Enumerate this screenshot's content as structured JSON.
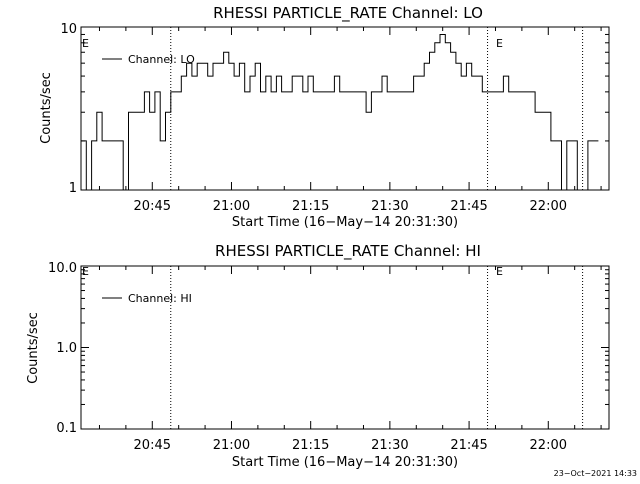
{
  "chart_data": [
    {
      "type": "line",
      "title": "RHESSI PARTICLE_RATE Channel: LO",
      "xlabel": "Start Time (16−May−14 20:31:30)",
      "ylabel": "Counts/sec",
      "yscale": "log",
      "ylim": [
        1,
        10
      ],
      "ytick_labels": [
        "1",
        "10"
      ],
      "xlim": [
        "20:31:30",
        "22:11:30"
      ],
      "xtick_labels": [
        "20:45",
        "21:00",
        "21:15",
        "21:30",
        "21:45",
        "22:00"
      ],
      "legend": "Channel: LO",
      "legend_position": "top-left",
      "markers": [
        {
          "label": "E",
          "time": "20:31:30"
        },
        {
          "label": "",
          "time": "20:48:30"
        },
        {
          "label": "E",
          "time": "21:48:30"
        },
        {
          "label": "",
          "time": "22:06:30"
        }
      ],
      "series": [
        {
          "name": "Channel: LO",
          "x_minutes_from_start": [
            0,
            1,
            2,
            3,
            4,
            5,
            6,
            7,
            8,
            9,
            10,
            11,
            12,
            13,
            14,
            15,
            16,
            17,
            18,
            19,
            20,
            21,
            22,
            23,
            24,
            25,
            26,
            27,
            28,
            29,
            30,
            31,
            32,
            33,
            34,
            35,
            36,
            37,
            38,
            39,
            40,
            41,
            42,
            43,
            44,
            45,
            46,
            47,
            48,
            49,
            50,
            51,
            52,
            53,
            54,
            55,
            56,
            57,
            58,
            59,
            60,
            61,
            62,
            63,
            64,
            65,
            66,
            67,
            68,
            69,
            70,
            71,
            72,
            73,
            74,
            75,
            76,
            77,
            78,
            79,
            80,
            81,
            82,
            83,
            84,
            85,
            86,
            87,
            88,
            89,
            90,
            91,
            92,
            93,
            94,
            95,
            96,
            97
          ],
          "values": [
            2,
            1,
            2,
            3,
            2,
            2,
            2,
            2,
            1,
            3,
            3,
            3,
            4,
            3,
            4,
            2,
            3,
            4,
            4,
            5,
            6,
            5,
            6,
            6,
            5,
            6,
            6,
            7,
            6,
            5,
            6,
            4,
            5,
            6,
            4,
            5,
            4,
            5,
            4,
            4,
            5,
            5,
            4,
            5,
            4,
            4,
            4,
            4,
            5,
            4,
            4,
            4,
            4,
            4,
            3,
            4,
            4,
            5,
            4,
            4,
            4,
            4,
            4,
            5,
            5,
            6,
            7,
            8,
            9,
            8,
            7,
            6,
            5,
            6,
            5,
            5,
            4,
            4,
            4,
            4,
            5,
            4,
            4,
            4,
            4,
            4,
            3,
            3,
            3,
            2,
            2,
            1,
            2,
            2,
            1,
            1,
            2,
            2
          ]
        }
      ]
    },
    {
      "type": "line",
      "title": "RHESSI PARTICLE_RATE Channel: HI",
      "xlabel": "Start Time (16−May−14 20:31:30)",
      "ylabel": "Counts/sec",
      "yscale": "log",
      "ylim": [
        0.1,
        10
      ],
      "ytick_labels": [
        "0.1",
        "1.0",
        "10.0"
      ],
      "xlim": [
        "20:31:30",
        "22:11:30"
      ],
      "xtick_labels": [
        "20:45",
        "21:00",
        "21:15",
        "21:30",
        "21:45",
        "22:00"
      ],
      "legend": "Channel: HI",
      "legend_position": "top-left",
      "markers": [
        {
          "label": "E",
          "time": "20:31:30"
        },
        {
          "label": "",
          "time": "20:48:30"
        },
        {
          "label": "E",
          "time": "21:48:30"
        },
        {
          "label": "",
          "time": "22:06:30"
        }
      ],
      "series": [
        {
          "name": "Channel: HI",
          "values": []
        }
      ]
    }
  ],
  "footer": {
    "date": "23−Oct−2021 14:33"
  },
  "colors": {
    "background": "#ffffff",
    "foreground": "#000000"
  }
}
